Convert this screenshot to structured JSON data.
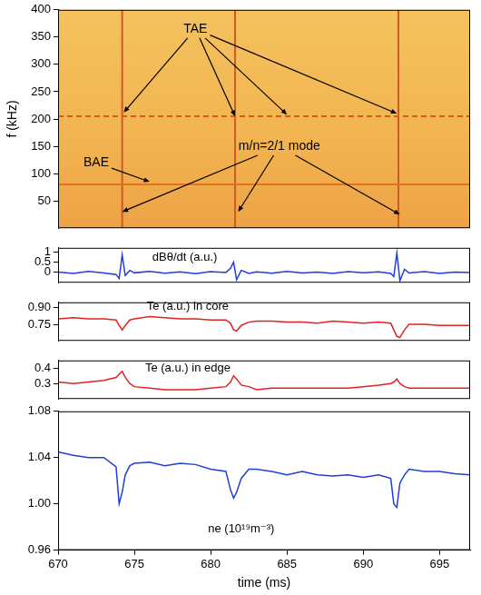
{
  "chart_data": [
    {
      "type": "spectrogram",
      "y_label": "f (kHz)",
      "xlim": [
        670,
        697
      ],
      "ylim": [
        0,
        400
      ],
      "yticks": [
        50,
        100,
        150,
        200,
        250,
        300,
        350,
        400
      ],
      "grid": false,
      "tick_labels": "y",
      "series": [
        {
          "color": "#e2731a",
          "line_style": "solid",
          "x": [
            670,
            697
          ],
          "values": [
            80,
            80
          ]
        },
        {
          "color": "#d65a1e",
          "line_style": "dashed",
          "x": [
            670,
            697
          ],
          "values": [
            205,
            205
          ]
        },
        {
          "color": "#cf5a22",
          "line_style": "solid",
          "x": [
            674.2,
            674.2,
            674.2,
            681.6,
            681.6,
            681.6,
            692.3,
            692.3
          ],
          "values": [
            0,
            400,
            null,
            0,
            400,
            null,
            0,
            400
          ]
        }
      ],
      "annotations": [
        {
          "text": "TAE",
          "x": 679,
          "y": 365,
          "arrows": [
            [
              674.3,
              212
            ],
            [
              681.6,
              205
            ],
            [
              685,
              208
            ],
            [
              692.2,
              210
            ]
          ]
        },
        {
          "text": "BAE",
          "x": 672.5,
          "y": 120,
          "arrows": [
            [
              676,
              85
            ]
          ]
        },
        {
          "text": "m/n=2/1 mode",
          "x": 684.5,
          "y": 150,
          "arrows": [
            [
              674.2,
              30
            ],
            [
              681.8,
              30
            ],
            [
              692.4,
              25
            ]
          ]
        }
      ]
    },
    {
      "type": "line",
      "xlim": [
        670,
        697
      ],
      "ylim": [
        -0.5,
        1.2
      ],
      "yticks": [
        0,
        0.5,
        1
      ],
      "grid": false,
      "tick_labels": "y",
      "x": [
        670,
        671,
        672,
        673,
        673.8,
        674.0,
        674.2,
        674.4,
        674.7,
        675,
        676,
        677,
        678,
        679,
        680,
        681,
        681.3,
        681.5,
        681.7,
        682,
        682.5,
        683,
        684,
        685,
        686,
        687,
        688,
        689,
        690,
        691,
        691.8,
        692.0,
        692.2,
        692.4,
        692.7,
        693,
        694,
        695,
        696,
        697
      ],
      "series": [
        {
          "color": "#1f3fd6",
          "line_style": "solid",
          "values": [
            0.02,
            -0.05,
            0.05,
            -0.03,
            -0.1,
            -0.3,
            0.85,
            -0.15,
            0.1,
            -0.02,
            0.05,
            -0.04,
            0.03,
            -0.06,
            0.04,
            0.0,
            0.2,
            0.5,
            -0.35,
            0.1,
            -0.05,
            0.03,
            -0.04,
            0.05,
            -0.03,
            0.02,
            -0.05,
            0.04,
            -0.02,
            0.03,
            -0.05,
            -0.2,
            0.95,
            -0.4,
            0.15,
            -0.03,
            0.04,
            -0.05,
            0.02,
            0.0
          ]
        }
      ],
      "annotations": [
        {
          "text": "dBθ/dt (a.u.)",
          "x": 678.3,
          "y": 0.75
        }
      ]
    },
    {
      "type": "line",
      "xlim": [
        670,
        697
      ],
      "ylim": [
        0.6,
        0.95
      ],
      "yticks": [
        0.75,
        {
          "value": 0.9,
          "label": "0.90"
        }
      ],
      "grid": false,
      "tick_labels": "y",
      "x": [
        670,
        671,
        672,
        673,
        673.8,
        674.0,
        674.2,
        674.4,
        674.7,
        675,
        676,
        677,
        678,
        679,
        680,
        681,
        681.3,
        681.5,
        681.7,
        682,
        682.5,
        683,
        684,
        685,
        686,
        687,
        688,
        689,
        690,
        691,
        691.8,
        692.0,
        692.2,
        692.4,
        692.7,
        693,
        694,
        695,
        696,
        697
      ],
      "series": [
        {
          "color": "#e02424",
          "line_style": "solid",
          "values": [
            0.8,
            0.81,
            0.8,
            0.8,
            0.79,
            0.74,
            0.7,
            0.74,
            0.79,
            0.8,
            0.82,
            0.81,
            0.8,
            0.8,
            0.79,
            0.79,
            0.76,
            0.7,
            0.69,
            0.74,
            0.77,
            0.78,
            0.78,
            0.77,
            0.77,
            0.76,
            0.78,
            0.77,
            0.76,
            0.77,
            0.76,
            0.7,
            0.64,
            0.63,
            0.7,
            0.75,
            0.75,
            0.74,
            0.74,
            0.74
          ]
        }
      ],
      "annotations": [
        {
          "text": "Te (a.u.) in core",
          "x": 678.5,
          "y": 0.91
        }
      ]
    },
    {
      "type": "line",
      "xlim": [
        670,
        697
      ],
      "ylim": [
        0.2,
        0.45
      ],
      "yticks": [
        0.3,
        0.4
      ],
      "grid": false,
      "tick_labels": "y",
      "x": [
        670,
        671,
        672,
        673,
        673.8,
        674.0,
        674.2,
        674.4,
        674.7,
        675,
        676,
        677,
        678,
        679,
        680,
        681,
        681.3,
        681.5,
        681.7,
        682,
        682.5,
        683,
        684,
        685,
        686,
        687,
        688,
        689,
        690,
        691,
        691.8,
        692.0,
        692.2,
        692.4,
        692.7,
        693,
        694,
        695,
        696,
        697
      ],
      "series": [
        {
          "color": "#e02424",
          "line_style": "solid",
          "values": [
            0.31,
            0.3,
            0.31,
            0.32,
            0.34,
            0.36,
            0.38,
            0.34,
            0.3,
            0.28,
            0.27,
            0.26,
            0.26,
            0.26,
            0.27,
            0.28,
            0.31,
            0.35,
            0.33,
            0.29,
            0.28,
            0.26,
            0.27,
            0.27,
            0.27,
            0.27,
            0.27,
            0.27,
            0.28,
            0.29,
            0.3,
            0.31,
            0.33,
            0.3,
            0.28,
            0.27,
            0.27,
            0.27,
            0.27,
            0.27
          ]
        }
      ],
      "annotations": [
        {
          "text": "Te (a.u.) in edge",
          "x": 678.5,
          "y": 0.4
        }
      ]
    },
    {
      "type": "line",
      "x_label": "time (ms)",
      "xlim": [
        670,
        697
      ],
      "xticks": [
        670,
        675,
        680,
        685,
        690,
        695
      ],
      "ylim": [
        0.96,
        1.08
      ],
      "yticks": [
        0.96,
        {
          "value": 1.0,
          "label": "1.00"
        },
        1.04,
        1.08
      ],
      "grid": false,
      "x": [
        670,
        671,
        672,
        673,
        673.8,
        674.0,
        674.2,
        674.4,
        674.7,
        675,
        676,
        677,
        678,
        679,
        680,
        681,
        681.3,
        681.5,
        681.7,
        682,
        682.5,
        683,
        684,
        685,
        686,
        687,
        688,
        689,
        690,
        691,
        691.8,
        692.0,
        692.2,
        692.4,
        692.7,
        693,
        694,
        695,
        696,
        697
      ],
      "series": [
        {
          "color": "#1f3fd6",
          "line_style": "solid",
          "values": [
            1.045,
            1.042,
            1.04,
            1.04,
            1.032,
            1.0,
            1.01,
            1.025,
            1.033,
            1.035,
            1.036,
            1.033,
            1.035,
            1.034,
            1.03,
            1.028,
            1.012,
            1.005,
            1.01,
            1.022,
            1.03,
            1.03,
            1.028,
            1.025,
            1.028,
            1.025,
            1.024,
            1.025,
            1.023,
            1.025,
            1.022,
            1.0,
            0.997,
            1.018,
            1.025,
            1.03,
            1.028,
            1.028,
            1.026,
            1.025
          ]
        }
      ],
      "annotations": [
        {
          "text": "ne (10¹⁹m⁻³)",
          "x": 682,
          "y": 0.978
        }
      ]
    }
  ]
}
